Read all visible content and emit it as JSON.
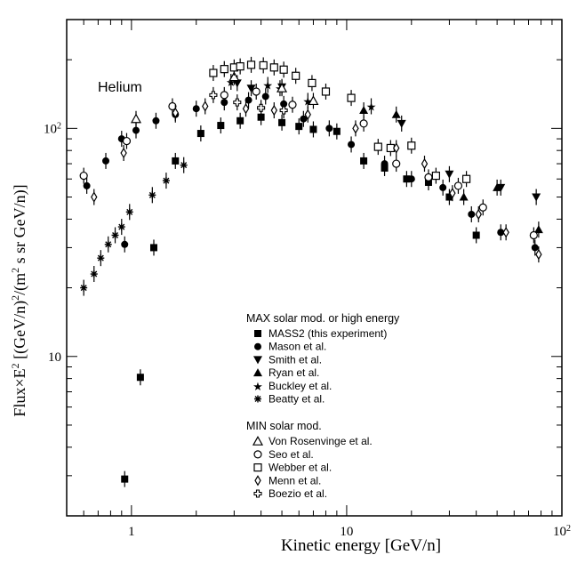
{
  "chart_data": {
    "type": "scatter",
    "title": "",
    "panel_label": "Helium",
    "xlabel": "Kinetic energy   [GeV/n]",
    "ylabel": "Flux×E² [(GeV/n)²/(m² s sr GeV/n)]",
    "ylabel_parts": {
      "pre": "Flux×E",
      "sup": "2",
      "mid": " [(GeV/n)",
      "sup2": "2",
      "mid2": "/(m",
      "sup3": "2",
      "post": " s sr GeV/n)]"
    },
    "x_scale": "log",
    "y_scale": "log",
    "xlim": [
      0.5,
      100
    ],
    "ylim": [
      2,
      300
    ],
    "x_ticks": [
      {
        "value": 1,
        "label": "1"
      },
      {
        "value": 10,
        "label": "10"
      },
      {
        "value": 100,
        "label": "10",
        "exp": "2"
      }
    ],
    "y_ticks": [
      {
        "value": 10,
        "label": "10"
      },
      {
        "value": 100,
        "label": "10",
        "exp": "2"
      }
    ],
    "grid": false,
    "legend_position": "bottom-center",
    "legend_groups": [
      {
        "heading": "MAX solar mod. or high energy",
        "entries": [
          "MASS2 (this experiment)",
          "Mason et al.",
          "Smith et al.",
          "Ryan et al.",
          "Buckley et al.",
          "Beatty et al."
        ]
      },
      {
        "heading": "MIN solar mod.",
        "entries": [
          "Von Rosenvinge et al.",
          "Seo et al.",
          "Webber et al.",
          "Menn et al.",
          "Boezio et al."
        ]
      }
    ],
    "series": [
      {
        "name": "MASS2 (this experiment)",
        "marker": "filled-square",
        "points": [
          [
            0.93,
            2.9
          ],
          [
            1.1,
            8.1
          ],
          [
            1.27,
            30
          ],
          [
            1.6,
            72
          ],
          [
            2.1,
            95
          ],
          [
            2.6,
            103
          ],
          [
            3.2,
            108
          ],
          [
            4.0,
            112
          ],
          [
            5.0,
            106
          ],
          [
            6.0,
            102
          ],
          [
            7.0,
            99
          ],
          [
            9.0,
            97
          ],
          [
            12.0,
            72
          ],
          [
            15.0,
            67
          ],
          [
            19.0,
            60
          ],
          [
            24.0,
            58
          ],
          [
            30.0,
            50
          ],
          [
            40.0,
            34
          ]
        ]
      },
      {
        "name": "Mason et al.",
        "marker": "filled-circle",
        "points": [
          [
            0.62,
            56
          ],
          [
            0.76,
            72
          ],
          [
            0.9,
            90
          ],
          [
            1.05,
            98
          ],
          [
            1.3,
            108
          ],
          [
            1.6,
            115
          ],
          [
            2.0,
            122
          ],
          [
            2.7,
            130
          ],
          [
            3.5,
            133
          ],
          [
            4.2,
            138
          ],
          [
            5.1,
            128
          ],
          [
            6.3,
            110
          ],
          [
            8.3,
            100
          ],
          [
            10.5,
            85
          ],
          [
            15.0,
            70
          ],
          [
            20.0,
            60
          ],
          [
            28.0,
            55
          ],
          [
            38.0,
            42
          ],
          [
            52.0,
            35
          ],
          [
            75.0,
            30
          ],
          [
            0.93,
            31
          ]
        ]
      },
      {
        "name": "Smith et al.",
        "marker": "filled-triangle-down",
        "points": [
          [
            3.1,
            158
          ],
          [
            3.6,
            150
          ],
          [
            5.0,
            152
          ],
          [
            18.0,
            105
          ],
          [
            30.0,
            63
          ],
          [
            52.0,
            55
          ],
          [
            76.0,
            50
          ]
        ]
      },
      {
        "name": "Ryan et al.",
        "marker": "filled-triangle-up",
        "points": [
          [
            12.0,
            120
          ],
          [
            17.0,
            115
          ],
          [
            35.0,
            50
          ],
          [
            50.0,
            55
          ],
          [
            78.0,
            36
          ]
        ]
      },
      {
        "name": "Buckley et al.",
        "marker": "star",
        "points": [
          [
            2.9,
            160
          ],
          [
            4.3,
            155
          ],
          [
            4.9,
            150
          ],
          [
            6.6,
            132
          ],
          [
            13.0,
            125
          ]
        ]
      },
      {
        "name": "Beatty et al.",
        "marker": "asterisk",
        "points": [
          [
            0.6,
            20
          ],
          [
            0.67,
            23
          ],
          [
            0.72,
            27
          ],
          [
            0.78,
            31
          ],
          [
            0.84,
            34
          ],
          [
            0.9,
            37
          ],
          [
            0.98,
            43
          ],
          [
            1.25,
            51
          ],
          [
            1.45,
            59
          ],
          [
            1.75,
            69
          ]
        ]
      },
      {
        "name": "Von Rosenvinge et al.",
        "marker": "open-triangle-up",
        "points": [
          [
            1.05,
            110
          ],
          [
            3.0,
            168
          ],
          [
            5.0,
            150
          ],
          [
            7.0,
            132
          ]
        ]
      },
      {
        "name": "Seo et al.",
        "marker": "open-circle",
        "points": [
          [
            0.6,
            62
          ],
          [
            0.95,
            88
          ],
          [
            1.55,
            125
          ],
          [
            2.7,
            140
          ],
          [
            3.8,
            145
          ],
          [
            5.6,
            127
          ],
          [
            12.0,
            105
          ],
          [
            17.0,
            70
          ],
          [
            24.0,
            61
          ],
          [
            33.0,
            56
          ],
          [
            43.0,
            45
          ],
          [
            74.0,
            34
          ]
        ]
      },
      {
        "name": "Webber et al.",
        "marker": "open-square",
        "points": [
          [
            2.4,
            175
          ],
          [
            2.7,
            182
          ],
          [
            3.0,
            185
          ],
          [
            3.2,
            187
          ],
          [
            3.6,
            190
          ],
          [
            4.1,
            189
          ],
          [
            4.6,
            185
          ],
          [
            5.1,
            181
          ],
          [
            5.8,
            170
          ],
          [
            6.9,
            158
          ],
          [
            8.0,
            145
          ],
          [
            10.5,
            136
          ],
          [
            14.0,
            83
          ],
          [
            16.0,
            82
          ],
          [
            20.0,
            84
          ],
          [
            26.0,
            62
          ],
          [
            36.0,
            60
          ]
        ]
      },
      {
        "name": "Menn et al.",
        "marker": "open-diamond",
        "points": [
          [
            0.67,
            50
          ],
          [
            0.92,
            78
          ],
          [
            1.6,
            117
          ],
          [
            2.2,
            125
          ],
          [
            3.4,
            122
          ],
          [
            4.6,
            120
          ],
          [
            6.6,
            115
          ],
          [
            11.0,
            100
          ],
          [
            17.0,
            82
          ],
          [
            23.0,
            70
          ],
          [
            31.0,
            52
          ],
          [
            41.0,
            42
          ],
          [
            55.0,
            35
          ],
          [
            78.0,
            28
          ]
        ]
      },
      {
        "name": "Boezio et al.",
        "marker": "open-cross",
        "points": [
          [
            2.4,
            140
          ],
          [
            3.1,
            130
          ],
          [
            4.0,
            123
          ],
          [
            5.1,
            120
          ]
        ]
      }
    ]
  }
}
